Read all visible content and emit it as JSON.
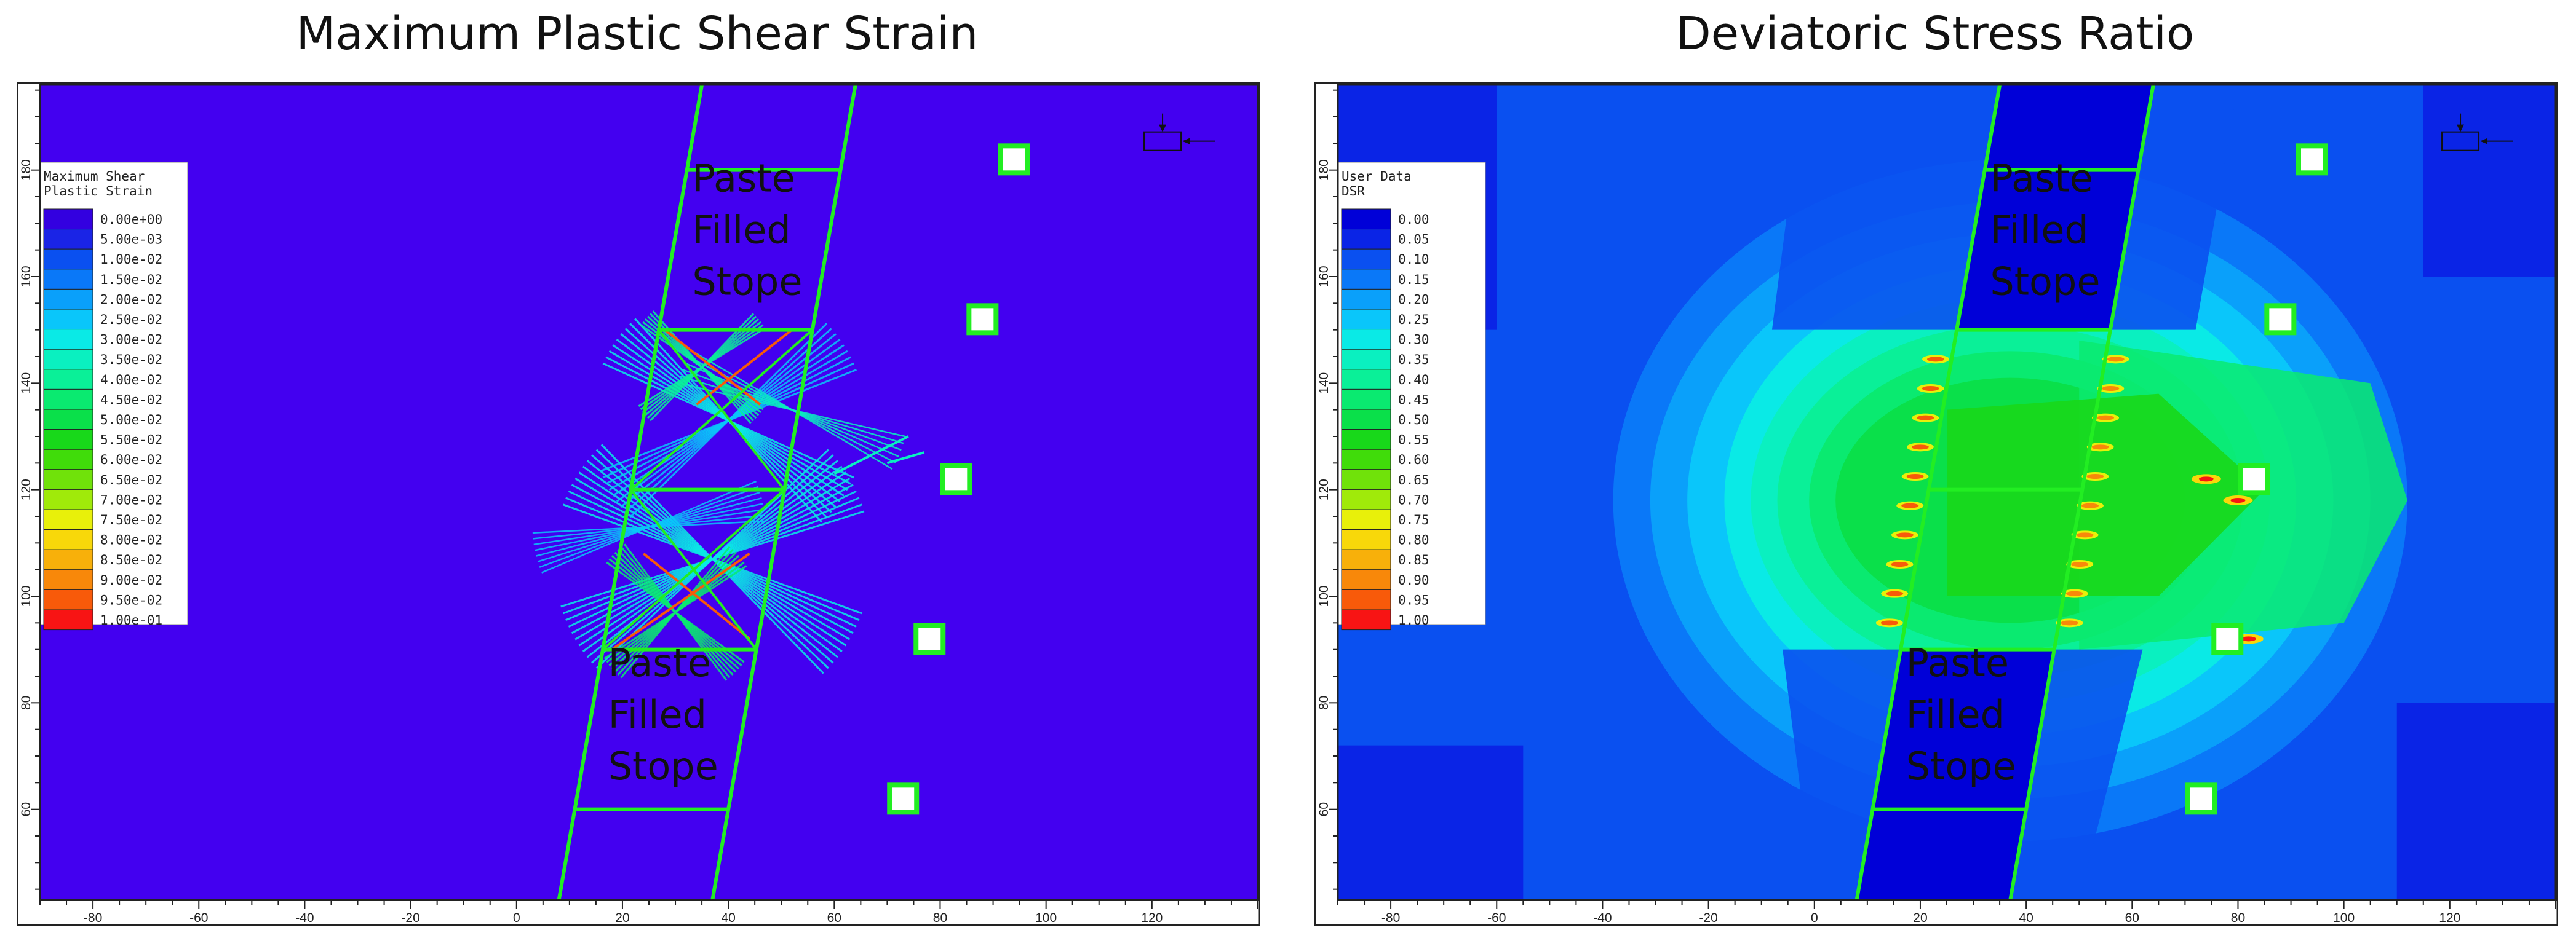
{
  "chart_data": [
    {
      "type": "heatmap",
      "title": "Maximum Plastic Shear Strain",
      "xlim": [
        -90,
        140
      ],
      "ylim": [
        43,
        196
      ],
      "x_ticks": [
        -80,
        -60,
        -40,
        -20,
        0,
        20,
        40,
        60,
        80,
        100,
        120
      ],
      "y_ticks": [
        60,
        80,
        100,
        120,
        140,
        160,
        180
      ],
      "background_color": "#4300f0",
      "legend": {
        "title_lines": [
          "Maximum Shear",
          "Plastic Strain"
        ],
        "placement": "top-left",
        "values": [
          "0.00e+00",
          "5.00e-03",
          "1.00e-02",
          "1.50e-02",
          "2.00e-02",
          "2.50e-02",
          "3.00e-02",
          "3.50e-02",
          "4.00e-02",
          "4.50e-02",
          "5.00e-02",
          "5.50e-02",
          "6.00e-02",
          "6.50e-02",
          "7.00e-02",
          "7.50e-02",
          "8.00e-02",
          "8.50e-02",
          "9.00e-02",
          "9.50e-02",
          "1.00e-01"
        ],
        "colors": [
          "#3300e0",
          "#1a24e6",
          "#0a50f0",
          "#0a78f8",
          "#0aa0fa",
          "#0ac6fa",
          "#0aeae6",
          "#0af0c0",
          "#0af098",
          "#0aea70",
          "#0ae04a",
          "#18d81a",
          "#40dc0a",
          "#70e20a",
          "#a0ea0a",
          "#e8f00a",
          "#f8d80a",
          "#f8b00a",
          "#f8880a",
          "#f85a0a",
          "#f81414"
        ]
      },
      "annotations": [
        {
          "text_lines": [
            "Paste",
            "Filled",
            "Stope"
          ],
          "position": "upper stope"
        },
        {
          "text_lines": [
            "Paste",
            "Filled",
            "Stope"
          ],
          "position": "lower stope"
        }
      ],
      "stope_outline": [
        [
          8,
          43
        ],
        [
          37,
          43
        ],
        [
          64,
          196
        ],
        [
          35,
          196
        ]
      ],
      "stope_levels": [
        60,
        90,
        120,
        150,
        180
      ],
      "monitoring_points": [
        [
          73,
          62
        ],
        [
          78,
          92
        ],
        [
          83,
          122
        ],
        [
          88,
          152
        ],
        [
          94,
          182
        ]
      ]
    },
    {
      "type": "heatmap",
      "title": "Deviatoric Stress Ratio",
      "xlim": [
        -90,
        140
      ],
      "ylim": [
        43,
        196
      ],
      "x_ticks": [
        -80,
        -60,
        -40,
        -20,
        0,
        20,
        40,
        60,
        80,
        100,
        120
      ],
      "y_ticks": [
        60,
        80,
        100,
        120,
        140,
        160,
        180
      ],
      "legend": {
        "title_lines": [
          "User Data",
          "DSR"
        ],
        "placement": "top-left",
        "values": [
          "0.00",
          "0.05",
          "0.10",
          "0.15",
          "0.20",
          "0.25",
          "0.30",
          "0.35",
          "0.40",
          "0.45",
          "0.50",
          "0.55",
          "0.60",
          "0.65",
          "0.70",
          "0.75",
          "0.80",
          "0.85",
          "0.90",
          "0.95",
          "1.00"
        ],
        "colors": [
          "#0000d8",
          "#0a24e6",
          "#0a50f0",
          "#0a78f8",
          "#0aa0fa",
          "#0ac6fa",
          "#0aeae6",
          "#0af0c0",
          "#0af098",
          "#0aea70",
          "#0ae04a",
          "#18d81a",
          "#40dc0a",
          "#70e20a",
          "#a0ea0a",
          "#e8f00a",
          "#f8d80a",
          "#f8b00a",
          "#f8880a",
          "#f85a0a",
          "#f81414"
        ]
      },
      "annotations": [
        {
          "text_lines": [
            "Paste",
            "Filled",
            "Stope"
          ],
          "position": "upper stope"
        },
        {
          "text_lines": [
            "Paste",
            "Filled",
            "Stope"
          ],
          "position": "lower stope"
        }
      ],
      "stope_outline": [
        [
          8,
          43
        ],
        [
          37,
          43
        ],
        [
          64,
          196
        ],
        [
          35,
          196
        ]
      ],
      "stope_levels": [
        60,
        90,
        120,
        150,
        180
      ],
      "monitoring_points": [
        [
          73,
          62
        ],
        [
          78,
          92
        ],
        [
          83,
          122
        ],
        [
          88,
          152
        ],
        [
          94,
          182
        ]
      ]
    }
  ]
}
